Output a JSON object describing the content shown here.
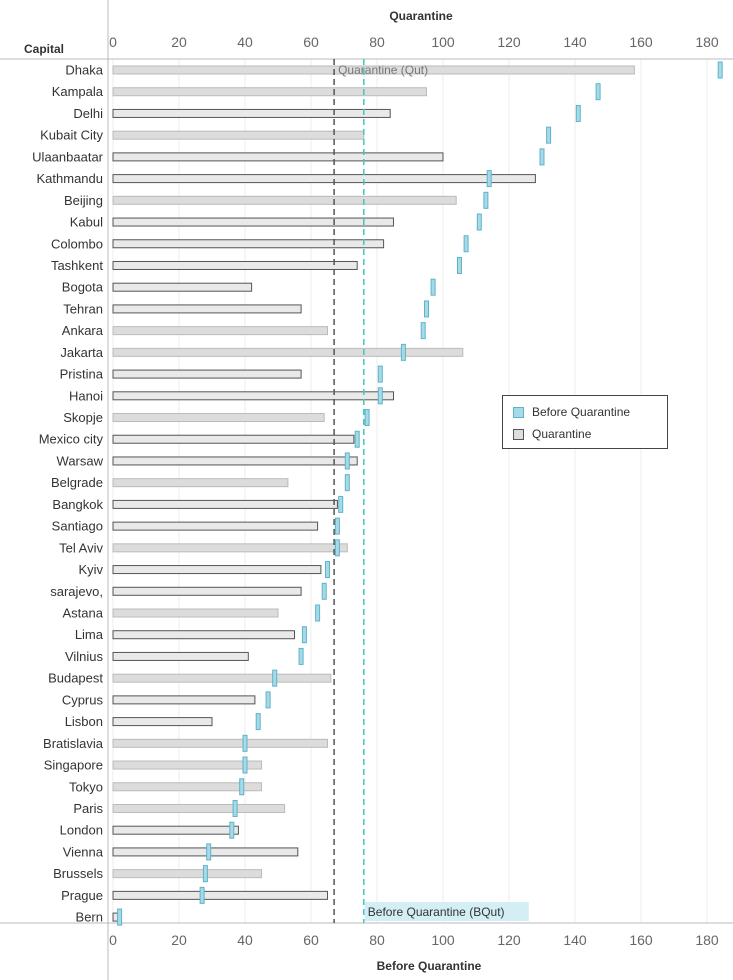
{
  "chart_data": {
    "type": "bar",
    "top_axis_title": "Quarantine",
    "bottom_axis_title": "Before Quarantine",
    "row_header": "Capital",
    "xlim": [
      0,
      185
    ],
    "ticks": [
      0,
      20,
      40,
      60,
      80,
      100,
      120,
      140,
      160,
      180
    ],
    "series": [
      {
        "name": "Quarantine",
        "mark": "bar",
        "color_dark": "#555555",
        "color_light": "#bbbbbb"
      },
      {
        "name": "Before Quarantine",
        "mark": "tick",
        "color": "#5bb5c9"
      }
    ],
    "categories": [
      "Dhaka",
      "Kampala",
      "Delhi",
      "Kubait City",
      "Ulaanbaatar",
      "Kathmandu",
      "Beijing",
      "Kabul",
      "Colombo",
      "Tashkent",
      "Bogota",
      "Tehran",
      "Ankara",
      "Jakarta",
      "Pristina",
      "Hanoi",
      "Skopje",
      "Mexico city",
      "Warsaw",
      "Belgrade",
      "Bangkok",
      "Santiago",
      "Tel Aviv",
      "Kyiv",
      "sarajevo,",
      "Astana",
      "Lima",
      "Vilnius",
      "Budapest",
      "Cyprus",
      "Lisbon",
      "Bratislavia",
      "Singapore",
      "Tokyo",
      "Paris",
      "London",
      "Vienna",
      "Brussels",
      "Prague",
      "Bern"
    ],
    "quarantine": [
      158,
      95,
      84,
      76,
      100,
      128,
      104,
      85,
      82,
      74,
      42,
      57,
      65,
      106,
      57,
      85,
      64,
      73,
      74,
      53,
      68,
      62,
      71,
      63,
      57,
      50,
      55,
      41,
      66,
      43,
      30,
      65,
      45,
      45,
      52,
      38,
      56,
      45,
      65,
      2
    ],
    "quarantine_shade": [
      "light",
      "light",
      "dark",
      "light",
      "dark",
      "dark",
      "light",
      "dark",
      "dark",
      "dark",
      "dark",
      "dark",
      "light",
      "light",
      "dark",
      "dark",
      "light",
      "dark",
      "dark",
      "light",
      "dark",
      "dark",
      "light",
      "dark",
      "dark",
      "light",
      "dark",
      "dark",
      "light",
      "dark",
      "dark",
      "light",
      "light",
      "light",
      "light",
      "dark",
      "dark",
      "light",
      "dark",
      "dark"
    ],
    "before_quarantine": [
      184,
      147,
      141,
      132,
      130,
      114,
      113,
      111,
      107,
      105,
      97,
      95,
      94,
      88,
      81,
      81,
      77,
      74,
      71,
      71,
      69,
      68,
      68,
      65,
      64,
      62,
      58,
      57,
      49,
      47,
      44,
      40,
      40,
      39,
      37,
      36,
      29,
      28,
      27,
      2
    ],
    "reference_lines": [
      {
        "series": "Quarantine",
        "value": 67,
        "label": "Quarantine (Qut)",
        "color": "#555555"
      },
      {
        "series": "Before Quarantine",
        "value": 76,
        "label": "Before Quarantine (BQut)",
        "color": "#3cc9b8"
      }
    ],
    "legend": {
      "position": "center-right",
      "items": [
        "Before Quarantine",
        "Quarantine"
      ]
    }
  }
}
